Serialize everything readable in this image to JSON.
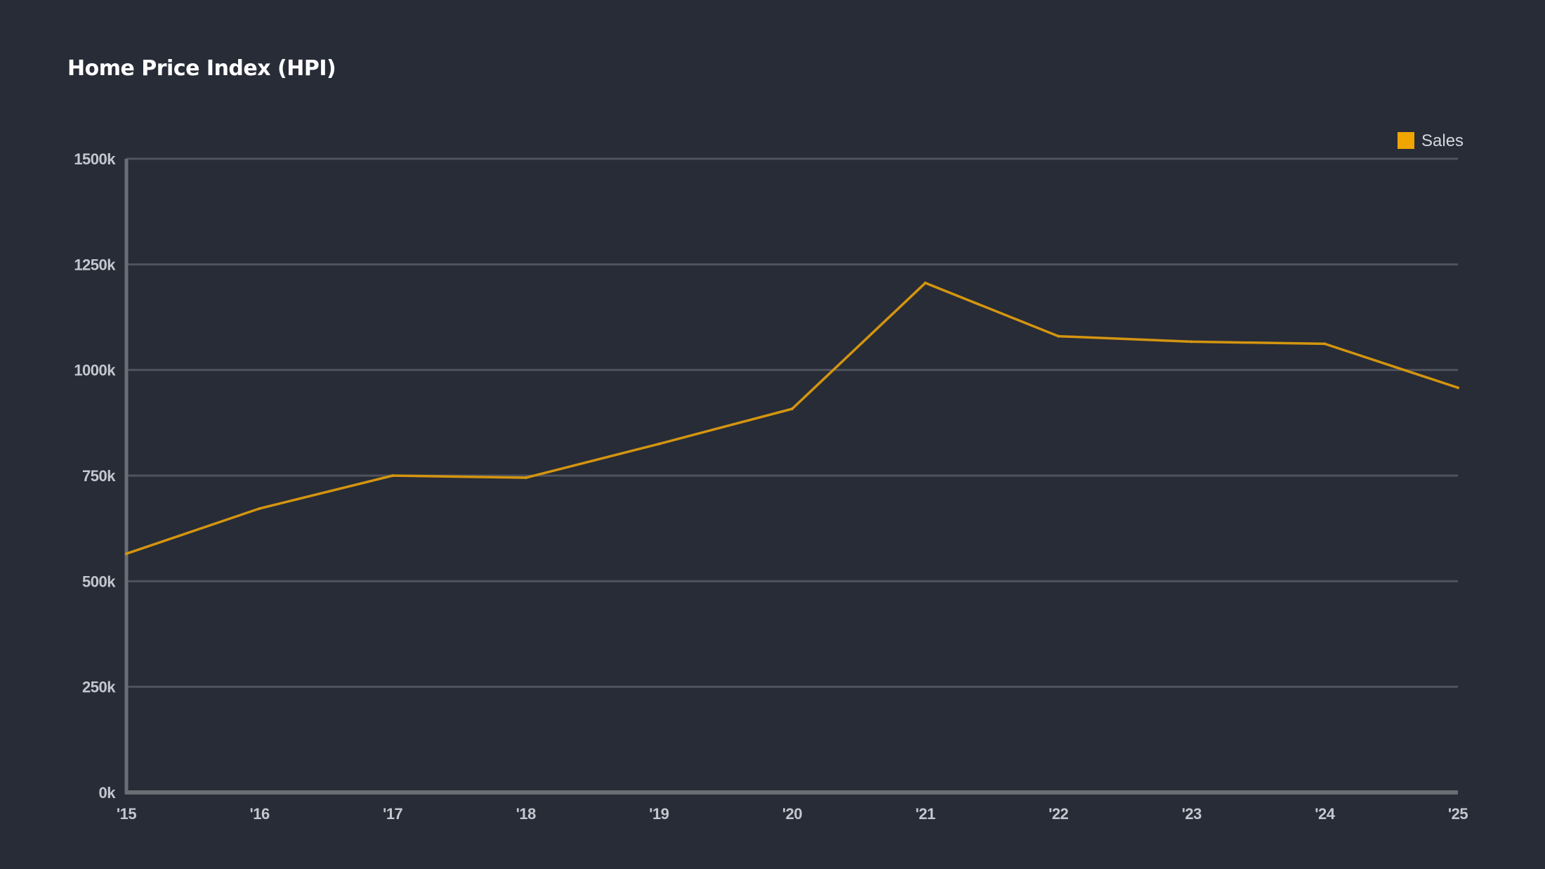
{
  "chart_data": {
    "type": "line",
    "title": "Home Price Index (HPI)",
    "x": [
      "'15",
      "'16",
      "'17",
      "'18",
      "'19",
      "'20",
      "'21",
      "'22",
      "'23",
      "'24",
      "'25"
    ],
    "series": [
      {
        "name": "Sales",
        "values": [
          565000,
          672000,
          750000,
          745000,
          825000,
          908000,
          1206000,
          1080000,
          1067000,
          1062000,
          958000
        ],
        "color": "#f0a500"
      }
    ],
    "y_ticks": [
      {
        "value": 0,
        "label": "0k"
      },
      {
        "value": 250000,
        "label": "250k"
      },
      {
        "value": 500000,
        "label": "500k"
      },
      {
        "value": 750000,
        "label": "750k"
      },
      {
        "value": 1000000,
        "label": "1000k"
      },
      {
        "value": 1250000,
        "label": "1250k"
      },
      {
        "value": 1500000,
        "label": "1500k"
      }
    ],
    "ylim": [
      0,
      1500000
    ],
    "grid": true,
    "legend": "top-right",
    "colors": {
      "background": "#282c37",
      "grid": "#4f535c",
      "axis": "#6a6d74",
      "line": "#d4950f",
      "legend_swatch": "#f0a500"
    }
  }
}
